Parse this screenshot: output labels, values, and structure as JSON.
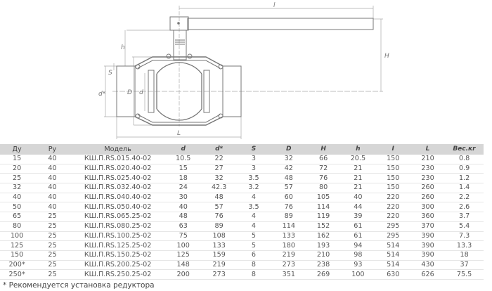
{
  "drawing": {
    "labels": {
      "l_top": "l",
      "h": "h",
      "H": "H",
      "S": "S",
      "d_star": "d*",
      "D": "D",
      "d": "d",
      "L": "L"
    }
  },
  "table": {
    "headers": [
      "Ду",
      "Ру",
      "Модель",
      "d",
      "d*",
      "S",
      "D",
      "H",
      "h",
      "I",
      "L",
      "Вес.кг"
    ],
    "rows": [
      [
        "15",
        "40",
        "КШ.П.RS.015.40-02",
        "10.5",
        "22",
        "3",
        "32",
        "66",
        "20.5",
        "150",
        "210",
        "0.8"
      ],
      [
        "20",
        "40",
        "КШ.П.RS.020.40-02",
        "15",
        "27",
        "3",
        "42",
        "72",
        "21",
        "150",
        "230",
        "0.9"
      ],
      [
        "25",
        "40",
        "КШ.П.RS.025.40-02",
        "18",
        "32",
        "3.5",
        "48",
        "76",
        "21",
        "150",
        "230",
        "1.2"
      ],
      [
        "32",
        "40",
        "КШ.П.RS.032.40-02",
        "24",
        "42.3",
        "3.2",
        "57",
        "80",
        "21",
        "150",
        "260",
        "1.4"
      ],
      [
        "40",
        "40",
        "КШ.П.RS.040.40-02",
        "30",
        "48",
        "4",
        "60",
        "105",
        "40",
        "220",
        "260",
        "2.2"
      ],
      [
        "50",
        "40",
        "КШ.П.RS.050.40-02",
        "40",
        "57",
        "3.5",
        "76",
        "114",
        "44",
        "220",
        "300",
        "2.6"
      ],
      [
        "65",
        "25",
        "КШ.П.RS.065.25-02",
        "48",
        "76",
        "4",
        "89",
        "119",
        "39",
        "220",
        "360",
        "3.7"
      ],
      [
        "80",
        "25",
        "КШ.П.RS.080.25-02",
        "63",
        "89",
        "4",
        "114",
        "152",
        "61",
        "295",
        "370",
        "5.4"
      ],
      [
        "100",
        "25",
        "КШ.П.RS.100.25-02",
        "75",
        "108",
        "5",
        "133",
        "162",
        "61",
        "295",
        "390",
        "7.3"
      ],
      [
        "125",
        "25",
        "КШ.П.RS.125.25-02",
        "100",
        "133",
        "5",
        "180",
        "193",
        "94",
        "514",
        "390",
        "13.3"
      ],
      [
        "150",
        "25",
        "КШ.П.RS.150.25-02",
        "125",
        "159",
        "6",
        "219",
        "210",
        "98",
        "514",
        "390",
        "18"
      ],
      [
        "200*",
        "25",
        "КШ.П.RS.200.25-02",
        "148",
        "219",
        "8",
        "273",
        "238",
        "93",
        "514",
        "430",
        "37"
      ],
      [
        "250*",
        "25",
        "КШ.П.RS.250.25-02",
        "200",
        "273",
        "8",
        "351",
        "269",
        "100",
        "630",
        "626",
        "75.5"
      ]
    ]
  },
  "footnote": "* Рекомендуется установка редуктора"
}
